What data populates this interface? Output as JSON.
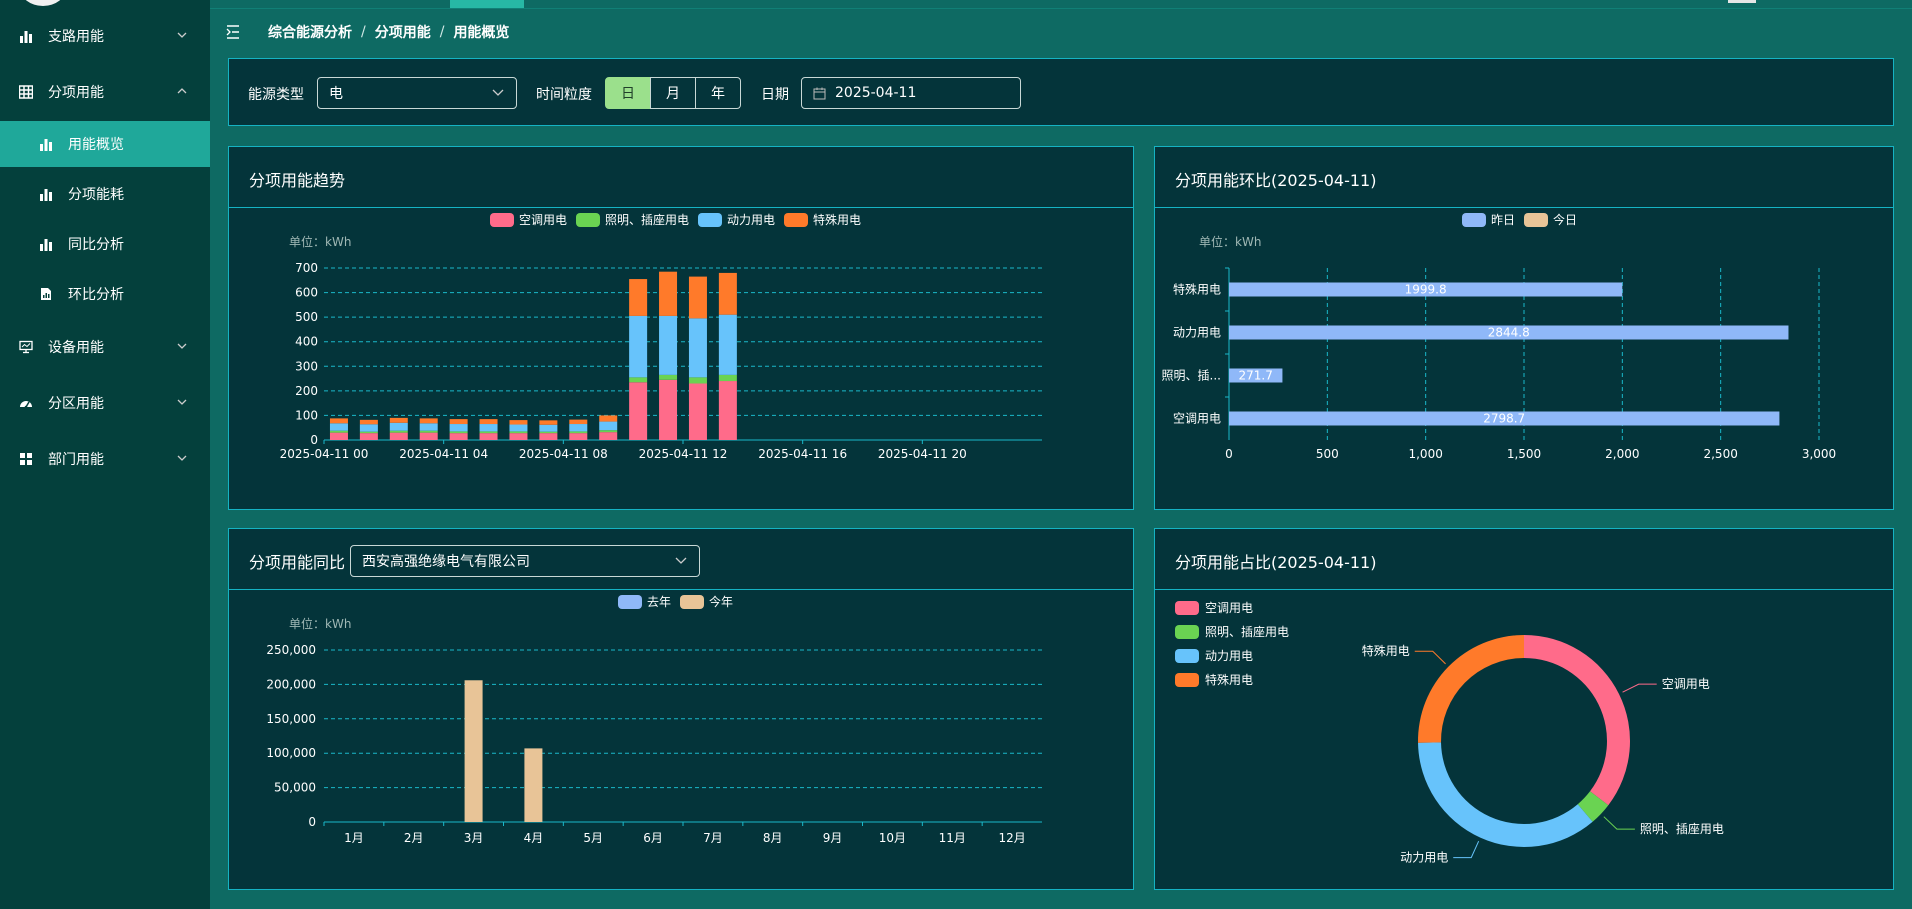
{
  "colors": {
    "ac": "#ff6b8a",
    "lighting": "#6ad352",
    "power": "#67c3fb",
    "special": "#ff7a2a",
    "yesterday": "#8fb8f8",
    "today": "#e8c497",
    "last_year": "#8fb8f8",
    "this_year": "#e8c497",
    "grid": "#1ab8c9"
  },
  "sidebar": {
    "items": [
      {
        "label": "支路用能",
        "icon": "bar-chart-icon"
      },
      {
        "label": "分项用能",
        "icon": "table-grid-icon"
      },
      {
        "label": "设备用能",
        "icon": "monitor-icon"
      },
      {
        "label": "分区用能",
        "icon": "dashboard-icon"
      },
      {
        "label": "部门用能",
        "icon": "apps-icon"
      }
    ],
    "subitems": [
      {
        "label": "用能概览",
        "icon": "bar-chart-icon"
      },
      {
        "label": "分项能耗",
        "icon": "bar-chart-icon"
      },
      {
        "label": "同比分析",
        "icon": "bar-chart-icon"
      },
      {
        "label": "环比分析",
        "icon": "document-chart-icon"
      }
    ]
  },
  "breadcrumb": [
    "综合能源分析",
    "分项用能",
    "用能概览"
  ],
  "filters": {
    "energy_type_label": "能源类型",
    "energy_type_value": "电",
    "granularity_label": "时间粒度",
    "granularity_options": [
      "日",
      "月",
      "年"
    ],
    "granularity_selected": "日",
    "date_label": "日期",
    "date_value": "2025-04-11"
  },
  "panels": {
    "trend_title": "分项用能趋势",
    "mom_title": "分项用能环比(2025-04-11)",
    "yoy_title": "分项用能同比",
    "yoy_company": "西安高强绝缘电气有限公司",
    "share_title": "分项用能占比(2025-04-11)"
  },
  "chart_data": [
    {
      "name": "trend",
      "type": "bar",
      "stacked": true,
      "unit_label": "单位：kWh",
      "legend": [
        "空调用电",
        "照明、插座用电",
        "动力用电",
        "特殊用电"
      ],
      "x_tick_labels": [
        "2025-04-11 00",
        "2025-04-11 04",
        "2025-04-11 08",
        "2025-04-11 12",
        "2025-04-11 16",
        "2025-04-11 20"
      ],
      "ylim": [
        0,
        700
      ],
      "yticks": [
        0,
        100,
        200,
        300,
        400,
        500,
        600,
        700
      ],
      "series": [
        {
          "name": "空调用电",
          "values": [
            30,
            28,
            30,
            30,
            28,
            28,
            28,
            28,
            28,
            32,
            235,
            245,
            230,
            240
          ]
        },
        {
          "name": "照明、插座用电",
          "values": [
            8,
            6,
            8,
            8,
            7,
            7,
            7,
            6,
            7,
            8,
            20,
            20,
            25,
            25
          ]
        },
        {
          "name": "动力用电",
          "values": [
            30,
            30,
            32,
            30,
            30,
            30,
            28,
            28,
            30,
            35,
            250,
            240,
            240,
            245
          ]
        },
        {
          "name": "特殊用电",
          "values": [
            20,
            18,
            20,
            20,
            20,
            20,
            18,
            18,
            18,
            25,
            150,
            180,
            170,
            170
          ]
        }
      ]
    },
    {
      "name": "mom",
      "type": "bar",
      "orientation": "horizontal",
      "unit_label": "单位：kWh",
      "legend": [
        "昨日",
        "今日"
      ],
      "categories": [
        "特殊用电",
        "动力用电",
        "照明、插...",
        "空调用电"
      ],
      "series": [
        {
          "name": "昨日",
          "values": [
            1999.8,
            2844.8,
            271.7,
            2798.7
          ]
        },
        {
          "name": "今日",
          "values": [
            0,
            0,
            0,
            0
          ]
        }
      ],
      "data_labels": [
        "1999.8",
        "2844.8",
        "271.7",
        "2798.7"
      ],
      "xlim": [
        0,
        3000
      ],
      "xtick_labels": [
        "0",
        "500",
        "1,000",
        "1,500",
        "2,000",
        "2,500",
        "3,000"
      ]
    },
    {
      "name": "yoy",
      "type": "bar",
      "unit_label": "单位：kWh",
      "legend": [
        "去年",
        "今年"
      ],
      "categories": [
        "1月",
        "2月",
        "3月",
        "4月",
        "5月",
        "6月",
        "7月",
        "8月",
        "9月",
        "10月",
        "11月",
        "12月"
      ],
      "series": [
        {
          "name": "去年",
          "values": [
            0,
            0,
            0,
            0,
            0,
            0,
            0,
            0,
            0,
            0,
            0,
            0
          ]
        },
        {
          "name": "今年",
          "values": [
            0,
            0,
            206000,
            107000,
            0,
            0,
            0,
            0,
            0,
            0,
            0,
            0
          ]
        }
      ],
      "ylim": [
        0,
        250000
      ],
      "ytick_labels": [
        "0",
        "50,000",
        "100,000",
        "150,000",
        "200,000",
        "250,000"
      ]
    },
    {
      "name": "share",
      "type": "pie",
      "donut": true,
      "legend": [
        "空调用电",
        "照明、插座用电",
        "动力用电",
        "特殊用电"
      ],
      "slices": [
        {
          "name": "空调用电",
          "value": 2798.7
        },
        {
          "name": "照明、插座用电",
          "value": 271.7
        },
        {
          "name": "动力用电",
          "value": 2844.8
        },
        {
          "name": "特殊用电",
          "value": 1999.8
        }
      ]
    }
  ]
}
